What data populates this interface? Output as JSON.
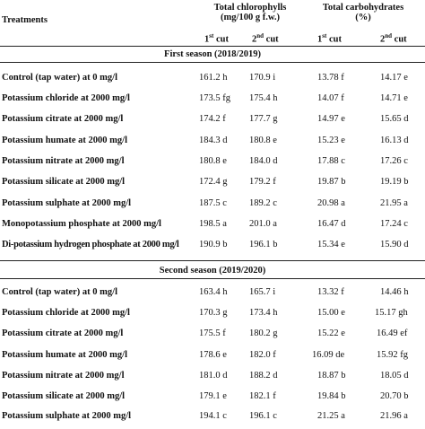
{
  "header": {
    "treatments": "Treatments",
    "chlorophylls": "Total chlorophylls",
    "chlorophylls_unit": "(mg/100 g f.w.)",
    "carbohydrates": "Total carbohydrates",
    "carbohydrates_unit": "(%)",
    "cut1_num": "1",
    "cut1_sup": "st",
    "cut1_word": " cut",
    "cut2_num": "2",
    "cut2_sup": "nd",
    "cut2_word": " cut"
  },
  "seasons": [
    {
      "title": "First season (2018/2019)",
      "rows": [
        {
          "treatment": "Control (tap water) at 0 mg/l",
          "chl1": "161.2 h",
          "chl2": "170.9 i",
          "carb1": "13.78 f",
          "carb2": "14.17 e"
        },
        {
          "treatment": "Potassium chloride at 2000 mg/l",
          "chl1": "173.5 fg",
          "chl2": "175.4 h",
          "carb1": "14.07 f",
          "carb2": "14.71 e"
        },
        {
          "treatment": "Potassium citrate at 2000 mg/l",
          "chl1": "174.2 f",
          "chl2": "177.7 g",
          "carb1": "14.97 e",
          "carb2": "15.65 d"
        },
        {
          "treatment": "Potassium humate at 2000 mg/l",
          "chl1": "184.3 d",
          "chl2": "180.8 e",
          "carb1": "15.23 e",
          "carb2": "16.13 d"
        },
        {
          "treatment": "Potassium nitrate at 2000 mg/l",
          "chl1": "180.8 e",
          "chl2": "184.0 d",
          "carb1": "17.88 c",
          "carb2": "17.26 c"
        },
        {
          "treatment": "Potassium silicate at 2000 mg/l",
          "chl1": "172.4 g",
          "chl2": "179.2 f",
          "carb1": "19.87 b",
          "carb2": "19.19 b"
        },
        {
          "treatment": "Potassium sulphate at 2000 mg/l",
          "chl1": "187.5 c",
          "chl2": "189.2 c",
          "carb1": "20.98 a",
          "carb2": "21.95 a"
        },
        {
          "treatment": "Monopotassium phosphate at 2000 mg/l",
          "chl1": "198.5 a",
          "chl2": "201.0 a",
          "carb1": "16.47 d",
          "carb2": "17.24 c"
        },
        {
          "treatment": "Di-potassium hydrogen phosphate at 2000 mg/l",
          "chl1": "190.9 b",
          "chl2": "196.1 b",
          "carb1": "15.34 e",
          "carb2": "15.90 d"
        }
      ]
    },
    {
      "title": "Second season (2019/2020)",
      "rows": [
        {
          "treatment": "Control (tap water) at 0 mg/l",
          "chl1": "163.4 h",
          "chl2": "165.7 i",
          "carb1": "13.32 f",
          "carb2": "14.46 h"
        },
        {
          "treatment": "Potassium chloride at 2000 mg/l",
          "chl1": "170.3 g",
          "chl2": "173.4 h",
          "carb1": "15.00 e",
          "carb2": "15.17 gh"
        },
        {
          "treatment": "Potassium citrate at 2000 mg/l",
          "chl1": "175.5 f",
          "chl2": "180.2 g",
          "carb1": "15.22 e",
          "carb2": "16.49 ef"
        },
        {
          "treatment": "Potassium humate at 2000 mg/l",
          "chl1": "178.6 e",
          "chl2": "182.0 f",
          "carb1": "16.09 de",
          "carb2": "15.92 fg"
        },
        {
          "treatment": "Potassium nitrate at 2000 mg/l",
          "chl1": "181.0 d",
          "chl2": "188.2 d",
          "carb1": "18.87 b",
          "carb2": "18.05 d"
        },
        {
          "treatment": "Potassium silicate at 2000 mg/l",
          "chl1": "179.1 e",
          "chl2": "182.1 f",
          "carb1": "19.84 b",
          "carb2": "20.70 b"
        },
        {
          "treatment": "Potassium sulphate at 2000 mg/l",
          "chl1": "194.1 c",
          "chl2": "196.1 c",
          "carb1": "21.25 a",
          "carb2": "21.96 a"
        }
      ]
    }
  ]
}
